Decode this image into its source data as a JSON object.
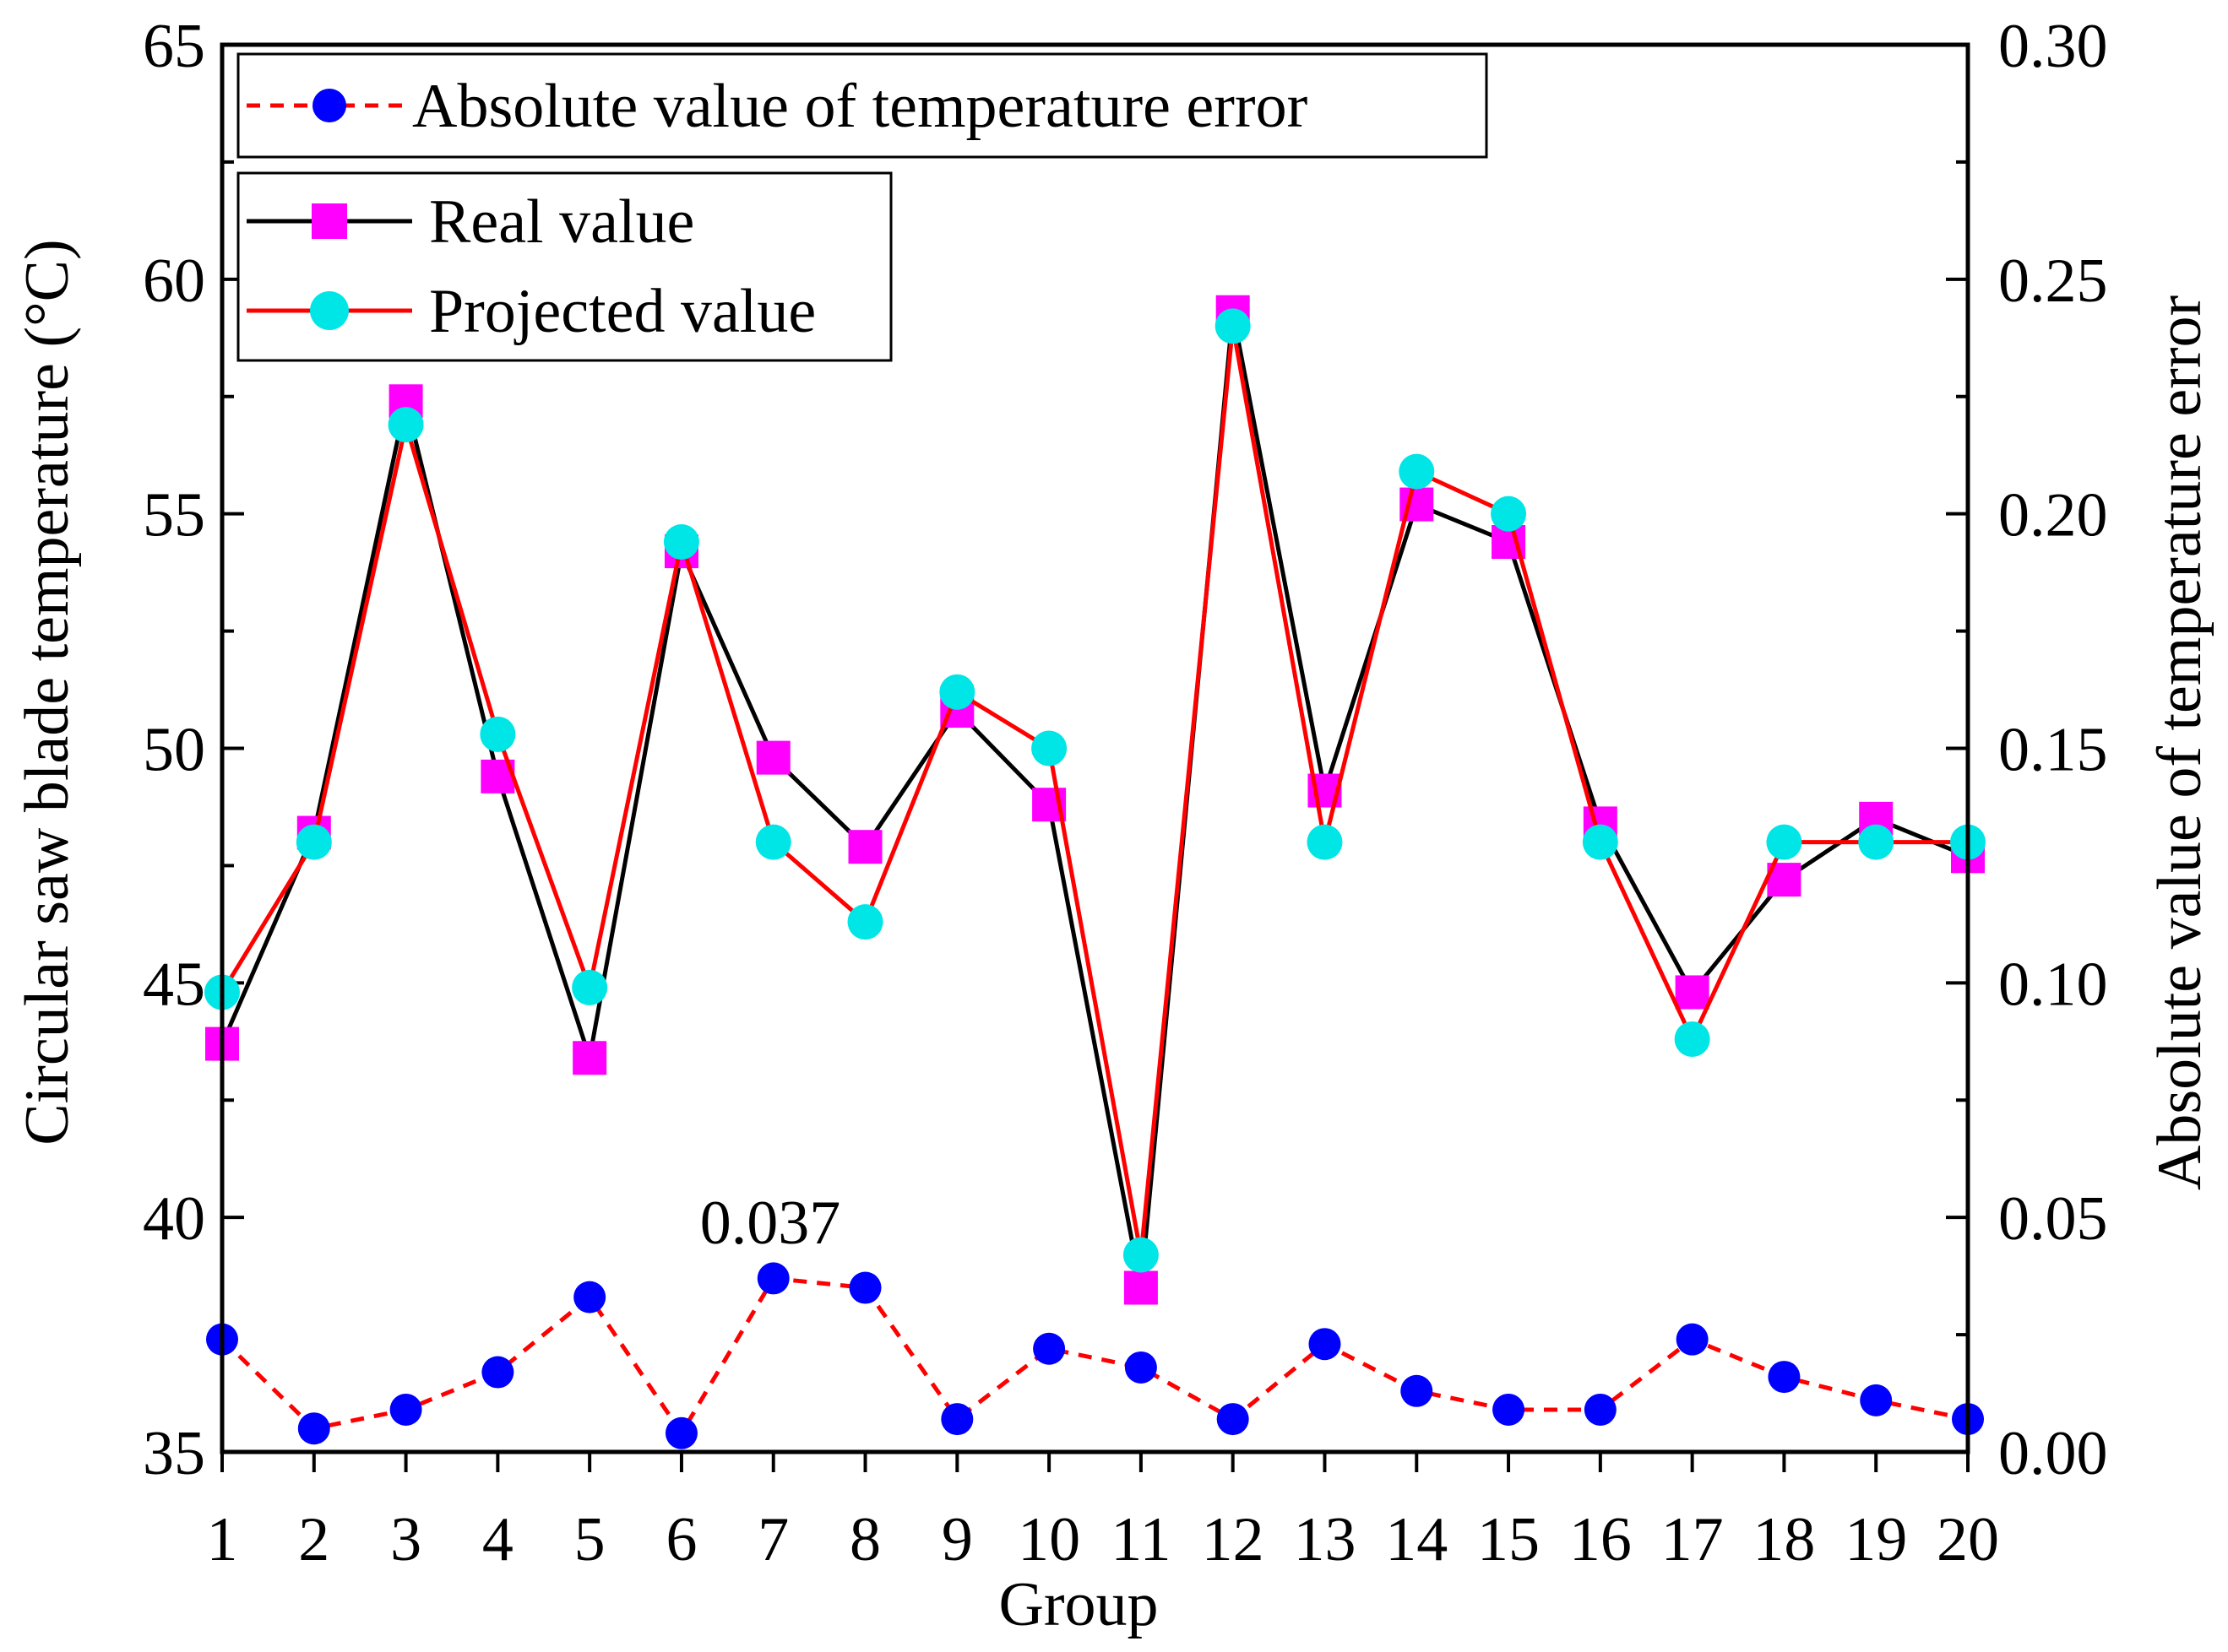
{
  "chart_data": {
    "type": "line",
    "title": "",
    "xlabel": "Group",
    "ylabel": "Circular saw blade temperature (°C)",
    "y2label": "Absolute value of temperature error",
    "categories": [
      "1",
      "2",
      "3",
      "4",
      "5",
      "6",
      "7",
      "8",
      "9",
      "10",
      "11",
      "12",
      "13",
      "14",
      "15",
      "16",
      "17",
      "18",
      "19",
      "20"
    ],
    "ylim": [
      35,
      65
    ],
    "y_ticks": [
      "35",
      "40",
      "45",
      "50",
      "55",
      "60",
      "65"
    ],
    "y2lim": [
      0,
      0.3
    ],
    "y2_ticks": [
      "0.00",
      "0.05",
      "0.10",
      "0.15",
      "0.20",
      "0.25",
      "0.30"
    ],
    "series": [
      {
        "name": "Real value",
        "axis": "left",
        "line_color": "#000000",
        "marker": "square",
        "marker_color": "#ff00ff",
        "values": [
          43.7,
          48.2,
          57.4,
          49.4,
          43.4,
          54.2,
          49.8,
          47.9,
          50.8,
          48.8,
          38.5,
          59.3,
          49.1,
          55.2,
          54.4,
          48.4,
          44.8,
          47.2,
          48.5,
          47.7
        ]
      },
      {
        "name": "Projected value",
        "axis": "left",
        "line_color": "#ff0000",
        "marker": "circle",
        "marker_color": "#00e5e5",
        "values": [
          44.8,
          48.0,
          56.9,
          50.3,
          44.9,
          54.4,
          48.0,
          46.3,
          51.2,
          50.0,
          39.2,
          59.0,
          48.0,
          55.9,
          55.0,
          48.0,
          43.8,
          48.0,
          48.0,
          48.0
        ]
      },
      {
        "name": "Absolute value of temperature error",
        "axis": "right",
        "line_color": "#ff0000",
        "line_style": "dashed",
        "marker": "circle",
        "marker_color": "#0000ff",
        "values": [
          0.024,
          0.005,
          0.009,
          0.017,
          0.033,
          0.004,
          0.037,
          0.035,
          0.007,
          0.022,
          0.018,
          0.007,
          0.023,
          0.013,
          0.009,
          0.009,
          0.024,
          0.016,
          0.011,
          0.007
        ]
      }
    ],
    "annotations": [
      {
        "text": "0.037",
        "group": "7",
        "series": "Absolute value of temperature error"
      }
    ],
    "legend": [
      {
        "label": "Absolute value of temperature error",
        "position": "top-left"
      },
      {
        "label": "Real value",
        "position": "upper-left"
      },
      {
        "label": "Projected value",
        "position": "upper-left"
      }
    ]
  }
}
